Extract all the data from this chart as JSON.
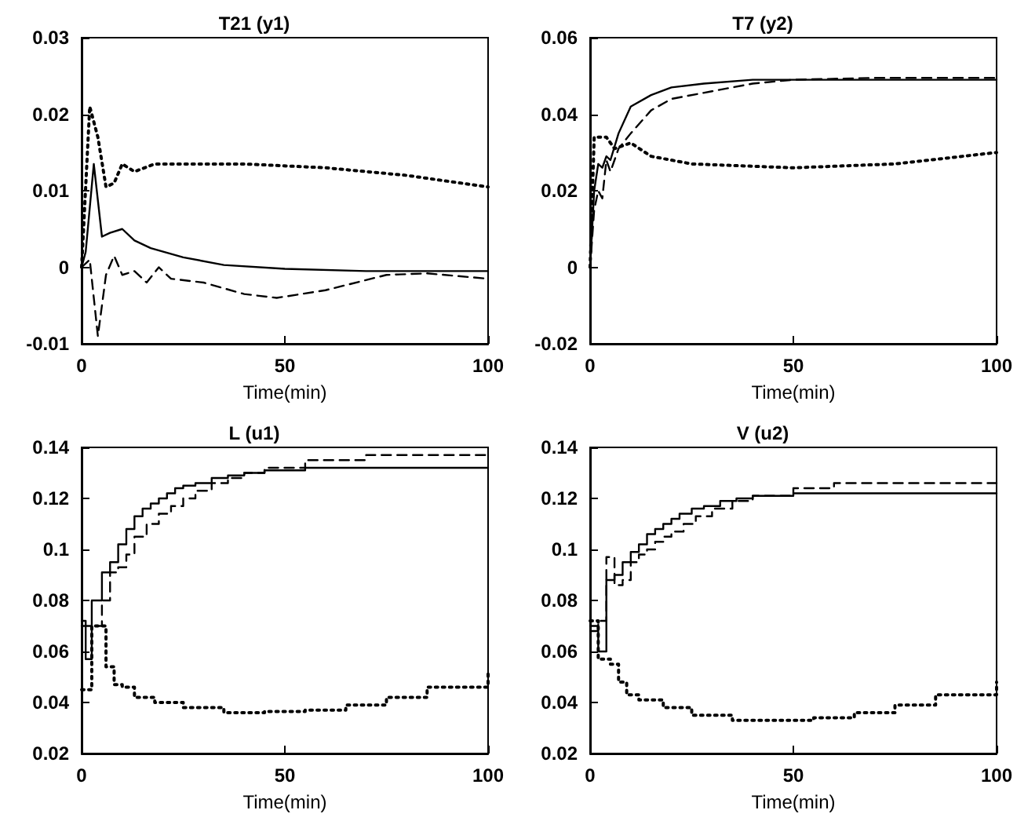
{
  "chart_data": [
    {
      "type": "line",
      "title": "T21 (y1)",
      "xlabel": "Time(min)",
      "xlim": [
        0,
        100
      ],
      "xticks": [
        0,
        50,
        100
      ],
      "ylim": [
        -0.01,
        0.03
      ],
      "yticks": [
        -0.01,
        0,
        0.01,
        0.02,
        0.03
      ],
      "grid": false,
      "marker": "none",
      "series": [
        {
          "color": "#000000",
          "line_style": "solid",
          "x": [
            0,
            1,
            3,
            5,
            7,
            10,
            13,
            17,
            25,
            35,
            50,
            70,
            100
          ],
          "values": [
            0,
            0.002,
            0.0135,
            0.004,
            0.0045,
            0.005,
            0.0035,
            0.0025,
            0.0013,
            0.0003,
            -0.0002,
            -0.0005,
            -0.0005
          ]
        },
        {
          "color": "#000000",
          "line_style": "dashed",
          "x": [
            0,
            2,
            4,
            6,
            8,
            10,
            13,
            16,
            19,
            22,
            30,
            40,
            48,
            60,
            75,
            85,
            100
          ],
          "values": [
            0,
            0.001,
            -0.009,
            -0.001,
            0.0015,
            -0.001,
            -0.0005,
            -0.002,
            0,
            -0.0015,
            -0.002,
            -0.0035,
            -0.004,
            -0.003,
            -0.001,
            -0.0008,
            -0.0015
          ]
        },
        {
          "color": "#000000",
          "line_style": "dotted",
          "x": [
            0,
            2,
            4,
            6,
            8,
            10,
            13,
            18,
            40,
            60,
            80,
            100
          ],
          "values": [
            0,
            0.021,
            0.017,
            0.0105,
            0.011,
            0.0135,
            0.0125,
            0.0135,
            0.0135,
            0.013,
            0.012,
            0.0105
          ]
        }
      ]
    },
    {
      "type": "line",
      "title": "T7 (y2)",
      "xlabel": "Time(min)",
      "xlim": [
        0,
        100
      ],
      "xticks": [
        0,
        50,
        100
      ],
      "ylim": [
        -0.02,
        0.06
      ],
      "yticks": [
        -0.02,
        0,
        0.02,
        0.04,
        0.06
      ],
      "grid": false,
      "marker": "none",
      "series": [
        {
          "color": "#000000",
          "line_style": "solid",
          "x": [
            0,
            1,
            2,
            3,
            4,
            5,
            7,
            10,
            15,
            20,
            28,
            40,
            100
          ],
          "values": [
            0,
            0.02,
            0.027,
            0.026,
            0.029,
            0.028,
            0.035,
            0.042,
            0.045,
            0.047,
            0.048,
            0.049,
            0.049
          ]
        },
        {
          "color": "#000000",
          "line_style": "dashed",
          "x": [
            0,
            1,
            2,
            3,
            4,
            5,
            7,
            10,
            15,
            20,
            30,
            40,
            50,
            70,
            100
          ],
          "values": [
            0,
            0.015,
            0.02,
            0.018,
            0.028,
            0.025,
            0.031,
            0.035,
            0.041,
            0.044,
            0.046,
            0.048,
            0.049,
            0.0495,
            0.0495
          ]
        },
        {
          "color": "#000000",
          "line_style": "dotted",
          "x": [
            0,
            1,
            4,
            6,
            10,
            15,
            25,
            50,
            75,
            100
          ],
          "values": [
            0,
            0.034,
            0.034,
            0.031,
            0.0325,
            0.029,
            0.027,
            0.026,
            0.027,
            0.03
          ]
        }
      ]
    },
    {
      "type": "step",
      "title": "L (u1)",
      "xlabel": "Time(min)",
      "xlim": [
        0,
        100
      ],
      "xticks": [
        0,
        50,
        100
      ],
      "ylim": [
        0.02,
        0.14
      ],
      "yticks": [
        0.02,
        0.04,
        0.06,
        0.08,
        0.1,
        0.12,
        0.14
      ],
      "grid": false,
      "marker": "none",
      "series": [
        {
          "color": "#000000",
          "line_style": "solid",
          "x": [
            0,
            1,
            2.5,
            5,
            7,
            9,
            11,
            13,
            15,
            17,
            19,
            21,
            23,
            25,
            28,
            32,
            36,
            40,
            45,
            55,
            100
          ],
          "values": [
            0.072,
            0.057,
            0.08,
            0.091,
            0.095,
            0.102,
            0.108,
            0.113,
            0.116,
            0.118,
            0.12,
            0.122,
            0.124,
            0.125,
            0.126,
            0.128,
            0.129,
            0.13,
            0.131,
            0.132,
            0.132
          ]
        },
        {
          "color": "#000000",
          "line_style": "dashed",
          "x": [
            0,
            2.5,
            5,
            7,
            9,
            11,
            13,
            16,
            19,
            22,
            25,
            28,
            32,
            36,
            40,
            45,
            55,
            70,
            100
          ],
          "values": [
            0.07,
            0.07,
            0.08,
            0.091,
            0.093,
            0.098,
            0.105,
            0.11,
            0.114,
            0.117,
            0.12,
            0.123,
            0.126,
            0.128,
            0.13,
            0.132,
            0.135,
            0.137,
            0.137
          ]
        },
        {
          "color": "#000000",
          "line_style": "dotted",
          "x": [
            0,
            2.5,
            6,
            8,
            10,
            13,
            18,
            25,
            35,
            45,
            55,
            65,
            75,
            85,
            100
          ],
          "values": [
            0.045,
            0.07,
            0.054,
            0.047,
            0.046,
            0.042,
            0.04,
            0.038,
            0.036,
            0.0365,
            0.037,
            0.039,
            0.042,
            0.046,
            0.052
          ]
        }
      ]
    },
    {
      "type": "step",
      "title": "V (u2)",
      "xlabel": "Time(min)",
      "xlim": [
        0,
        100
      ],
      "xticks": [
        0,
        50,
        100
      ],
      "ylim": [
        0.02,
        0.14
      ],
      "yticks": [
        0.02,
        0.04,
        0.06,
        0.08,
        0.1,
        0.12,
        0.14
      ],
      "grid": false,
      "marker": "none",
      "series": [
        {
          "color": "#000000",
          "line_style": "solid",
          "x": [
            0,
            2,
            4,
            6,
            8,
            10,
            12,
            14,
            16,
            18,
            20,
            22,
            25,
            28,
            32,
            36,
            40,
            50,
            100
          ],
          "values": [
            0.068,
            0.06,
            0.088,
            0.09,
            0.095,
            0.099,
            0.102,
            0.106,
            0.108,
            0.11,
            0.112,
            0.114,
            0.116,
            0.117,
            0.119,
            0.12,
            0.121,
            0.122,
            0.122
          ]
        },
        {
          "color": "#000000",
          "line_style": "dashed",
          "x": [
            0,
            2,
            4,
            6,
            8,
            10,
            12,
            14,
            16,
            18,
            20,
            23,
            26,
            30,
            35,
            40,
            50,
            60,
            100
          ],
          "values": [
            0.07,
            0.072,
            0.097,
            0.086,
            0.088,
            0.095,
            0.098,
            0.1,
            0.103,
            0.105,
            0.107,
            0.11,
            0.113,
            0.116,
            0.119,
            0.121,
            0.124,
            0.126,
            0.126
          ]
        },
        {
          "color": "#000000",
          "line_style": "dotted",
          "x": [
            0,
            2,
            5,
            7,
            9,
            12,
            18,
            25,
            35,
            45,
            55,
            65,
            75,
            85,
            100
          ],
          "values": [
            0.072,
            0.057,
            0.055,
            0.048,
            0.043,
            0.041,
            0.038,
            0.035,
            0.033,
            0.033,
            0.034,
            0.036,
            0.039,
            0.043,
            0.048
          ]
        }
      ]
    }
  ]
}
